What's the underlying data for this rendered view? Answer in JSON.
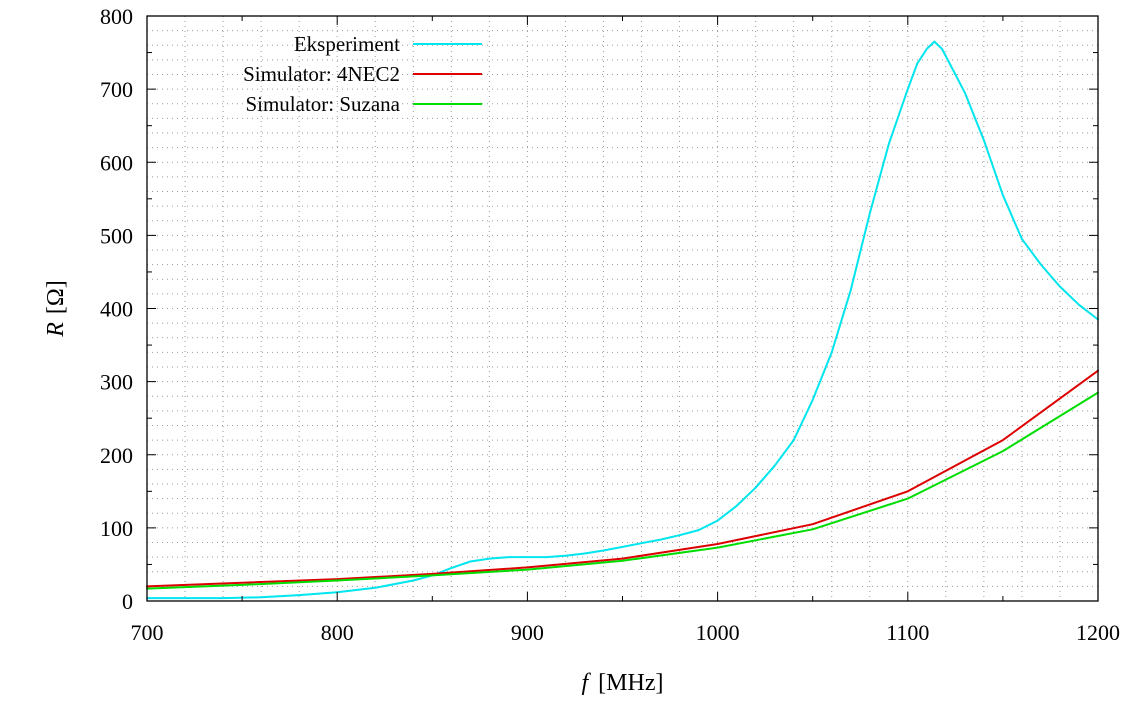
{
  "chart_data": {
    "type": "line",
    "title": "",
    "xlabel_var": "f",
    "xlabel_unit": "[MHz]",
    "ylabel_var": "R",
    "ylabel_unit": "[Ω]",
    "xlim": [
      700,
      1200
    ],
    "ylim": [
      0,
      800
    ],
    "xticks": [
      700,
      800,
      900,
      1000,
      1100,
      1200
    ],
    "yticks": [
      0,
      100,
      200,
      300,
      400,
      500,
      600,
      700,
      800
    ],
    "x_minor_step": 20,
    "y_minor_step": 20,
    "grid": "dotted",
    "legend_position": "top-left",
    "series": [
      {
        "name": "Eksperiment",
        "color": "#00e5ee",
        "points": [
          [
            700,
            4
          ],
          [
            720,
            4
          ],
          [
            740,
            4
          ],
          [
            760,
            5
          ],
          [
            780,
            8
          ],
          [
            800,
            12
          ],
          [
            820,
            18
          ],
          [
            840,
            28
          ],
          [
            850,
            35
          ],
          [
            860,
            45
          ],
          [
            870,
            54
          ],
          [
            880,
            58
          ],
          [
            890,
            60
          ],
          [
            900,
            60
          ],
          [
            910,
            60
          ],
          [
            920,
            62
          ],
          [
            930,
            65
          ],
          [
            940,
            69
          ],
          [
            950,
            74
          ],
          [
            960,
            79
          ],
          [
            970,
            84
          ],
          [
            980,
            90
          ],
          [
            990,
            97
          ],
          [
            1000,
            110
          ],
          [
            1010,
            130
          ],
          [
            1020,
            155
          ],
          [
            1030,
            185
          ],
          [
            1040,
            220
          ],
          [
            1050,
            275
          ],
          [
            1060,
            340
          ],
          [
            1070,
            425
          ],
          [
            1080,
            530
          ],
          [
            1090,
            625
          ],
          [
            1100,
            700
          ],
          [
            1105,
            735
          ],
          [
            1110,
            755
          ],
          [
            1114,
            765
          ],
          [
            1118,
            755
          ],
          [
            1125,
            720
          ],
          [
            1130,
            695
          ],
          [
            1140,
            630
          ],
          [
            1150,
            555
          ],
          [
            1160,
            495
          ],
          [
            1170,
            460
          ],
          [
            1180,
            430
          ],
          [
            1190,
            405
          ],
          [
            1200,
            385
          ]
        ]
      },
      {
        "name": "Simulator: 4NEC2",
        "color": "#dd0000",
        "points": [
          [
            700,
            20
          ],
          [
            750,
            25
          ],
          [
            800,
            30
          ],
          [
            850,
            37
          ],
          [
            900,
            46
          ],
          [
            950,
            58
          ],
          [
            1000,
            78
          ],
          [
            1050,
            105
          ],
          [
            1100,
            150
          ],
          [
            1150,
            220
          ],
          [
            1200,
            315
          ]
        ]
      },
      {
        "name": "Simulator: Suzana",
        "color": "#00dd00",
        "points": [
          [
            700,
            17
          ],
          [
            750,
            22
          ],
          [
            800,
            28
          ],
          [
            850,
            35
          ],
          [
            900,
            43
          ],
          [
            950,
            55
          ],
          [
            1000,
            73
          ],
          [
            1050,
            98
          ],
          [
            1100,
            140
          ],
          [
            1150,
            205
          ],
          [
            1200,
            285
          ]
        ]
      }
    ]
  }
}
